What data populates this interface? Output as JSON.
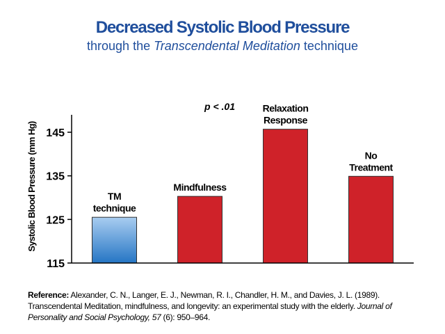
{
  "header": {
    "title": "Decreased Systolic Blood Pressure",
    "subtitle_pre": "through the ",
    "subtitle_em": "Transcendental Meditation",
    "subtitle_post": " technique"
  },
  "colors": {
    "title": "#1f4e9c",
    "tm_bar_top": "#a9cdf0",
    "tm_bar_bottom": "#2575c4",
    "other_bar": "#cf2229"
  },
  "chart_data": {
    "type": "bar",
    "title": "Decreased Systolic Blood Pressure",
    "subtitle": "through the Transcendental Meditation technique",
    "ylabel": "Systolic Blood Pressure (mm Hg)",
    "xlabel": "",
    "ylim": [
      115,
      149
    ],
    "yticks": [
      115,
      125,
      135,
      145
    ],
    "categories": [
      [
        "TM",
        "technique"
      ],
      [
        "Mindfulness"
      ],
      [
        "Relaxation",
        "Response"
      ],
      [
        "No",
        "Treatment"
      ]
    ],
    "values": [
      125.5,
      130.3,
      145.7,
      134.9
    ],
    "annotation": "p < .01",
    "grid": false,
    "legend": "none"
  },
  "reference": {
    "label": "Reference:",
    "text1": " Alexander, C. N., Langer, E. J., Newman, R. I., Chandler, H. M., and Davies, J. L. (1989). Transcendental Meditation, mindfulness, and longevity: an experimental study with the elderly. ",
    "journal": "Journal of Personality and Social Psychology, 57",
    "text2": " (6): 950–964."
  }
}
